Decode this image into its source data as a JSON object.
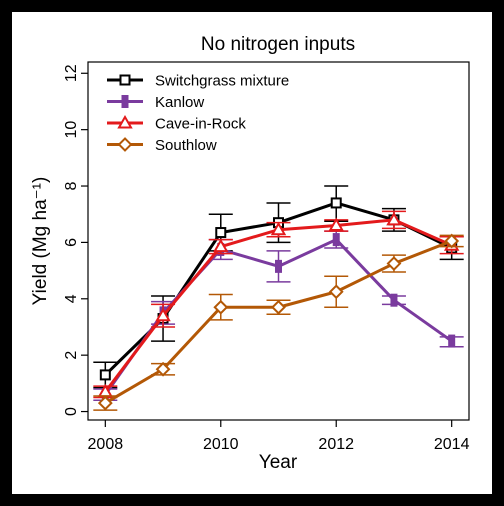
{
  "chart_data": {
    "type": "line",
    "title": "No nitrogen inputs",
    "xlabel": "Year",
    "ylabel": "Yield (Mg ha⁻¹)",
    "x": [
      2008,
      2009,
      2010,
      2011,
      2012,
      2013,
      2014
    ],
    "xticks": [
      "2008",
      "2010",
      "2012",
      "2014"
    ],
    "xlim": [
      2007.7,
      2014.3
    ],
    "yticks": [
      "0",
      "2",
      "4",
      "6",
      "8",
      "10",
      "12"
    ],
    "ylim": [
      -0.3,
      12.4
    ],
    "legend_position": "top-left",
    "grid": false,
    "series": [
      {
        "name": "Switchgrass mixture",
        "color": "#000000",
        "marker": "square",
        "values": [
          1.3,
          3.3,
          6.35,
          6.7,
          7.4,
          6.8,
          5.8
        ],
        "err_low": [
          0.85,
          2.5,
          5.7,
          6.0,
          6.75,
          6.4,
          5.4
        ],
        "err_high": [
          1.75,
          4.1,
          7.0,
          7.4,
          8.0,
          7.2,
          6.2
        ]
      },
      {
        "name": "Kanlow",
        "color": "#7a3b9e",
        "marker": "bar",
        "values": [
          0.6,
          3.5,
          5.75,
          5.15,
          6.1,
          3.95,
          2.5
        ],
        "err_low": [
          0.4,
          3.1,
          5.4,
          4.6,
          5.8,
          3.8,
          2.3
        ],
        "err_high": [
          0.8,
          3.9,
          6.1,
          5.7,
          6.4,
          4.1,
          2.65
        ]
      },
      {
        "name": "Cave-in-Rock",
        "color": "#e31a1c",
        "marker": "triangle",
        "values": [
          0.7,
          3.4,
          5.85,
          6.45,
          6.6,
          6.8,
          5.9
        ],
        "err_low": [
          0.5,
          3.0,
          5.6,
          6.2,
          6.4,
          6.5,
          5.6
        ],
        "err_high": [
          0.9,
          3.8,
          6.1,
          6.7,
          6.8,
          7.1,
          6.2
        ]
      },
      {
        "name": "Southlow",
        "color": "#b35806",
        "marker": "diamond",
        "values": [
          0.3,
          1.5,
          3.7,
          3.7,
          4.25,
          5.25,
          6.05
        ],
        "err_low": [
          0.05,
          1.3,
          3.25,
          3.45,
          3.7,
          4.95,
          5.85
        ],
        "err_high": [
          0.55,
          1.7,
          4.15,
          3.95,
          4.8,
          5.55,
          6.25
        ]
      }
    ]
  }
}
